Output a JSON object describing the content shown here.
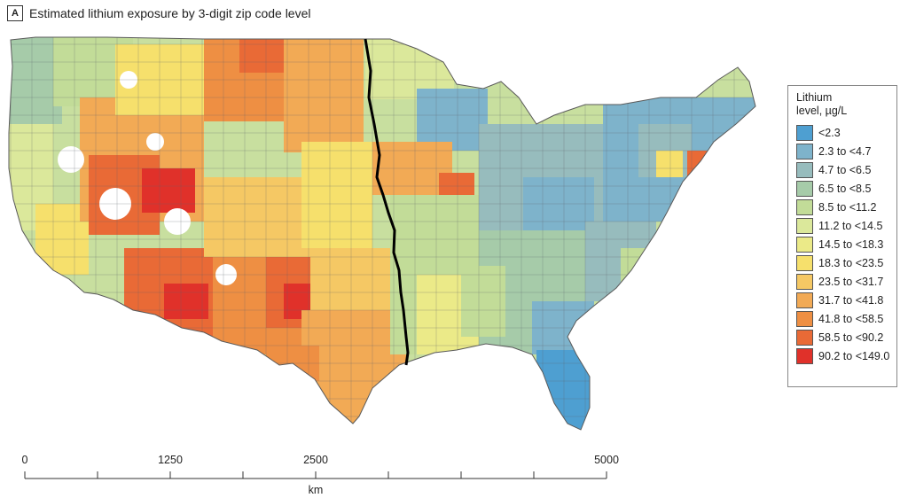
{
  "panel": {
    "label": "A"
  },
  "map": {
    "title": "Estimated lithium exposure by 3-digit zip code level",
    "divider_line": "black-boundary-line"
  },
  "legend": {
    "title_line1": "Lithium",
    "title_line2": "level, µg/L",
    "items": [
      {
        "label": "<2.3",
        "color": "#4e9fd1"
      },
      {
        "label": "2.3 to <4.7",
        "color": "#7eb3cb"
      },
      {
        "label": "4.7 to <6.5",
        "color": "#97bcbd"
      },
      {
        "label": "6.5 to <8.5",
        "color": "#a6cba9"
      },
      {
        "label": "8.5 to <11.2",
        "color": "#c2dc98"
      },
      {
        "label": "11.2 to <14.5",
        "color": "#dbe89b"
      },
      {
        "label": "14.5 to <18.3",
        "color": "#ebea88"
      },
      {
        "label": "18.3 to <23.5",
        "color": "#f6e06c"
      },
      {
        "label": "23.5 to <31.7",
        "color": "#f5c864"
      },
      {
        "label": "31.7 to <41.8",
        "color": "#f2aa55"
      },
      {
        "label": "41.8 to <58.5",
        "color": "#ee8f43"
      },
      {
        "label": "58.5 to <90.2",
        "color": "#e96a36"
      },
      {
        "label": "90.2 to <149.0",
        "color": "#e0312a"
      }
    ]
  },
  "scale": {
    "ticks": [
      "0",
      "1250",
      "2500",
      "5000"
    ],
    "tick_km": [
      0,
      1250,
      2500,
      5000
    ],
    "minor_km": [
      625,
      1875,
      3125,
      3750,
      4375
    ],
    "max_km": 5000,
    "unit": "km"
  }
}
